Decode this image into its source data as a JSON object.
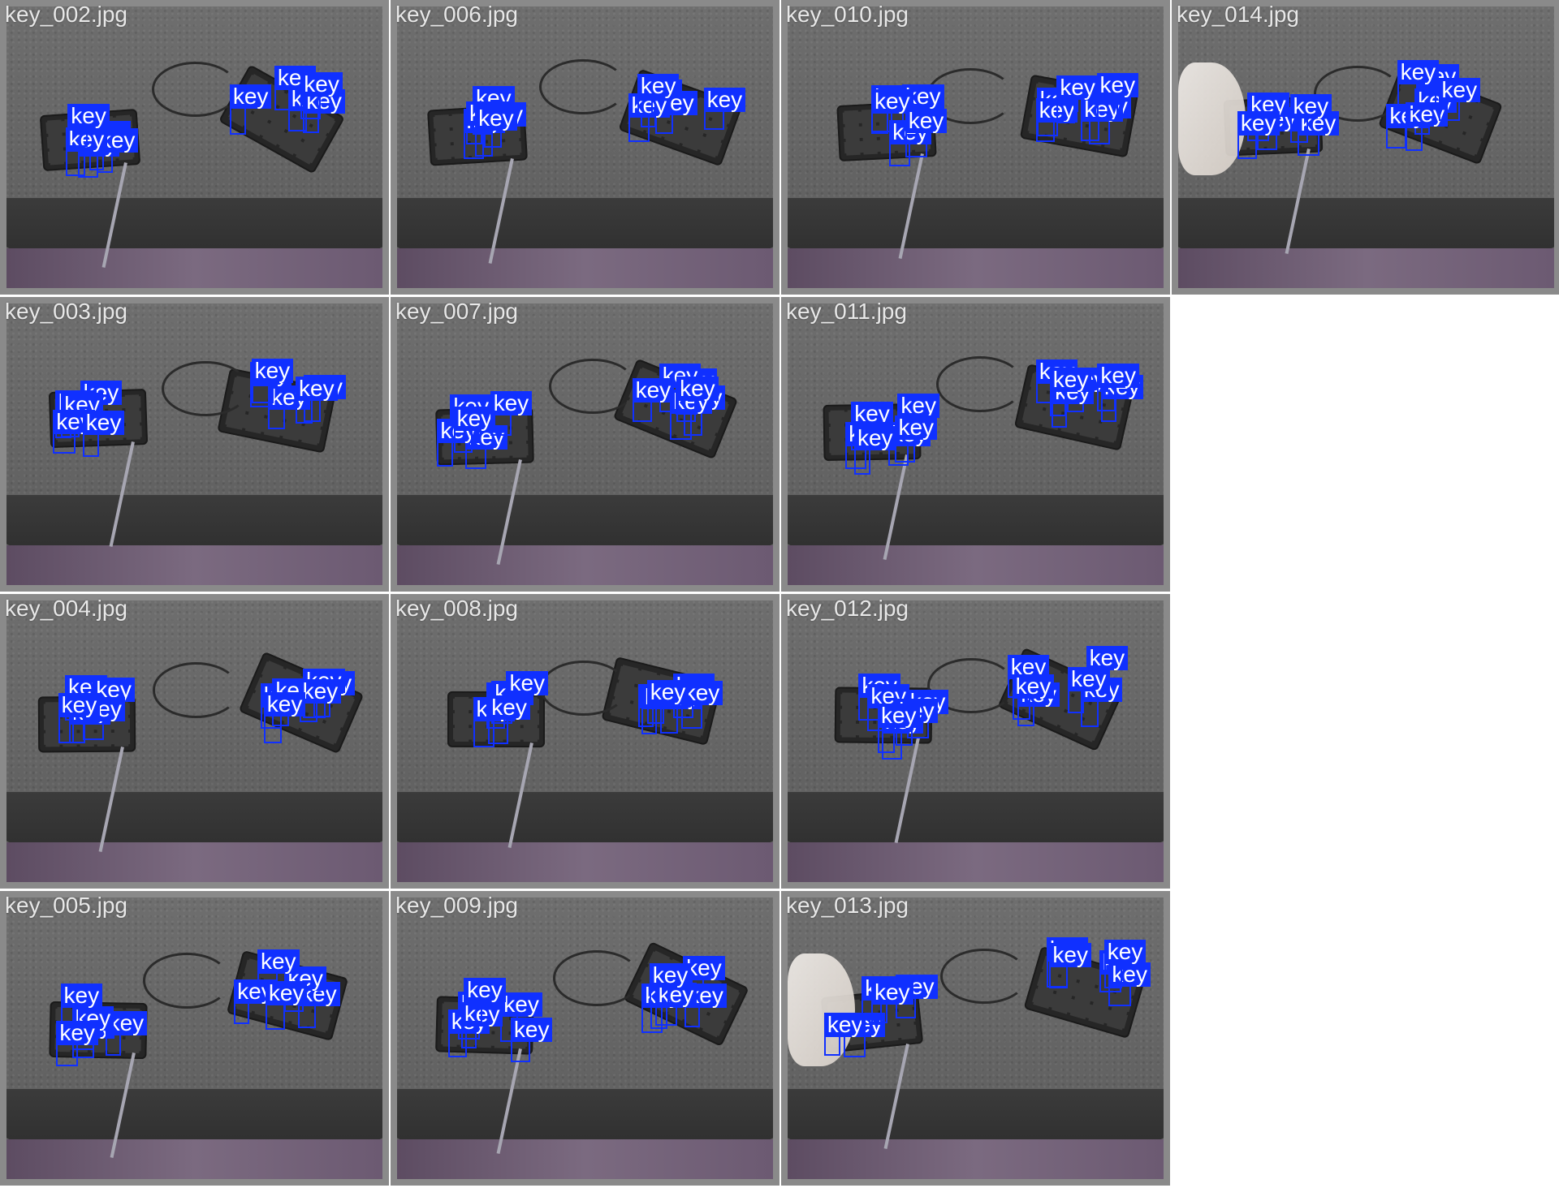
{
  "class_label": "key",
  "box_color": "#1030ff",
  "tiles": [
    {
      "filename": "key_002.jpg",
      "detections": 10
    },
    {
      "filename": "key_006.jpg",
      "detections": 10
    },
    {
      "filename": "key_010.jpg",
      "detections": 11
    },
    {
      "filename": "key_014.jpg",
      "detections": 11
    },
    {
      "filename": "key_003.jpg",
      "detections": 10
    },
    {
      "filename": "key_007.jpg",
      "detections": 11
    },
    {
      "filename": "key_011.jpg",
      "detections": 12
    },
    {
      "filename": "key_004.jpg",
      "detections": 11
    },
    {
      "filename": "key_008.jpg",
      "detections": 11
    },
    {
      "filename": "key_012.jpg",
      "detections": 12
    },
    {
      "filename": "key_005.jpg",
      "detections": 10
    },
    {
      "filename": "key_009.jpg",
      "detections": 12
    },
    {
      "filename": "key_013.jpg",
      "detections": 10
    }
  ]
}
